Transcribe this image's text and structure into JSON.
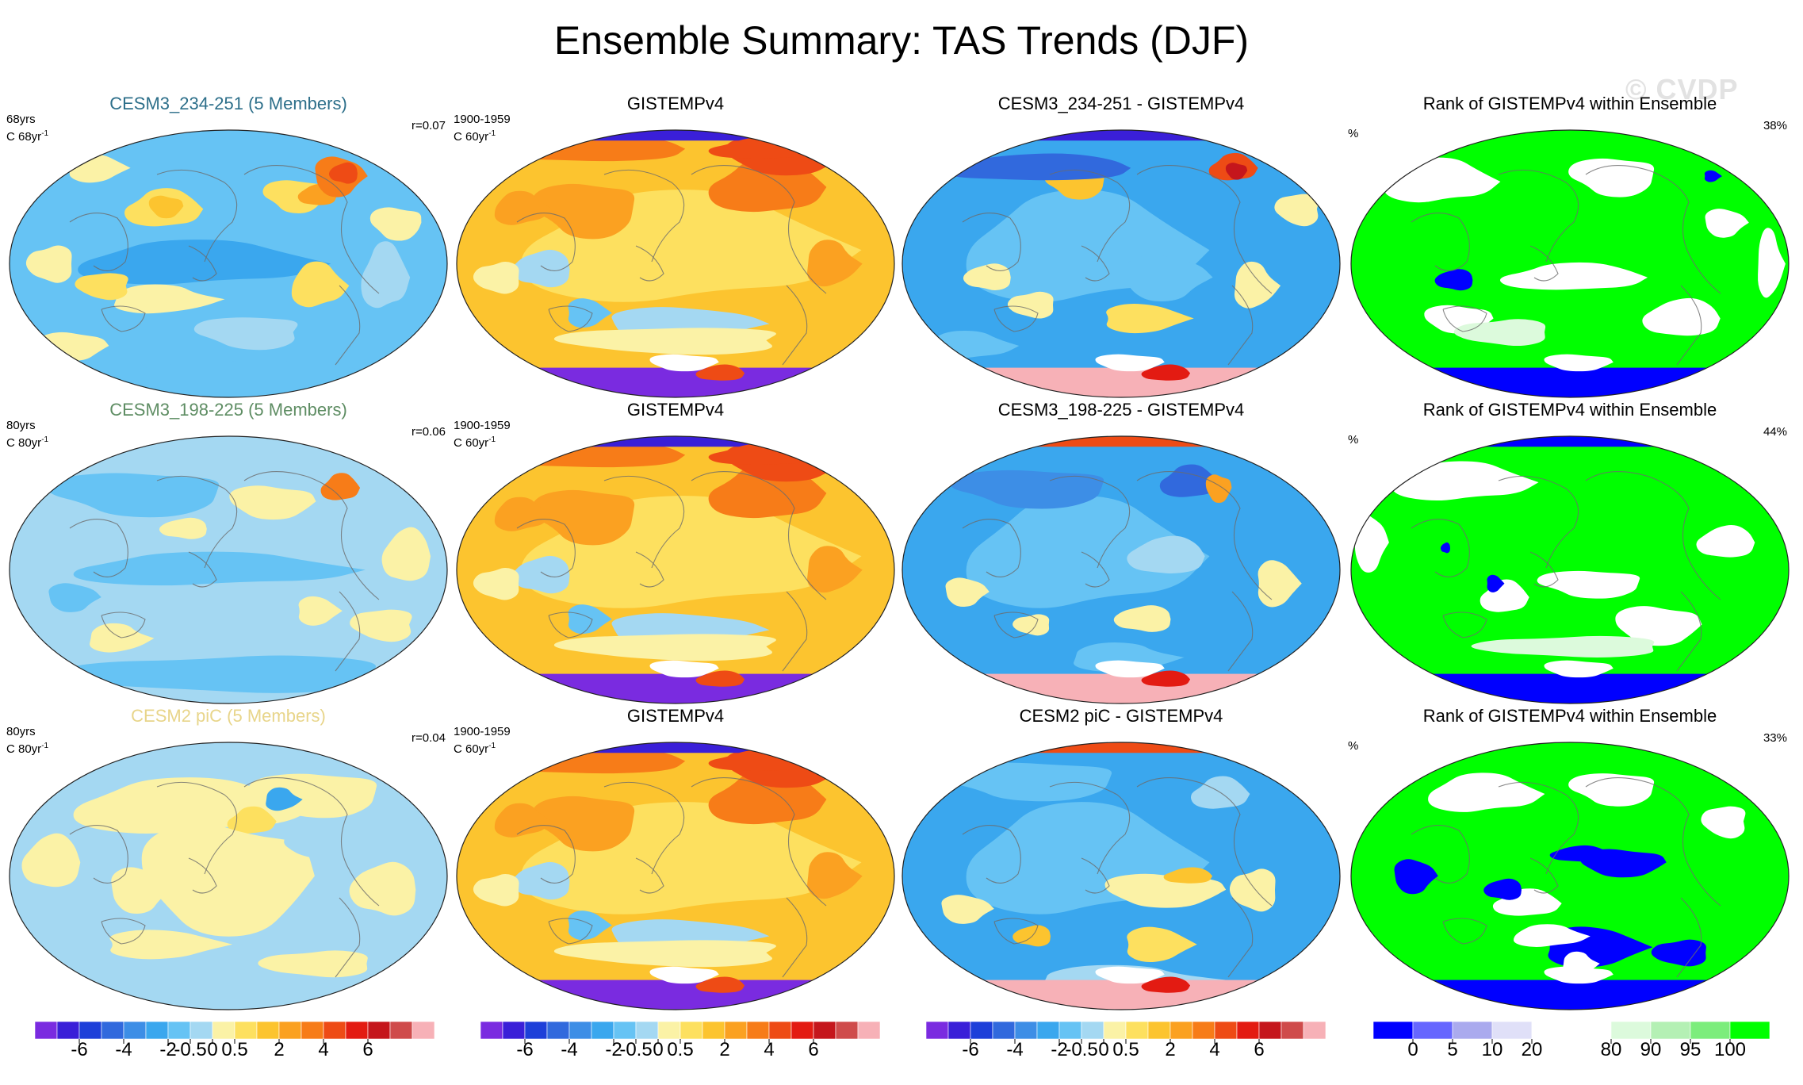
{
  "title": "Ensemble Summary: TAS Trends (DJF)",
  "watermark": "© CVDP",
  "rows": [
    {
      "model": {
        "title": "CESM3_234-251 (5 Members)",
        "title_color": "#2d6f8a",
        "years": "68yrs",
        "units": "C 68yr",
        "sup": "-1",
        "corr": "r=0.07",
        "pattern": "m1"
      },
      "obs": {
        "title": "GISTEMPv4",
        "years": "1900-1959",
        "units": "C 60yr",
        "sup": "-1",
        "pattern": "obs"
      },
      "diff": {
        "title": "CESM3_234-251 - GISTEMPv4",
        "pattern": "d1"
      },
      "rank": {
        "title": "Rank of GISTEMPv4 within Ensemble",
        "pct_label": "%",
        "pct_value": "38%",
        "pattern": "r1"
      }
    },
    {
      "model": {
        "title": "CESM3_198-225 (5 Members)",
        "title_color": "#5e8d63",
        "years": "80yrs",
        "units": "C 80yr",
        "sup": "-1",
        "corr": "r=0.06",
        "pattern": "m2"
      },
      "obs": {
        "title": "GISTEMPv4",
        "years": "1900-1959",
        "units": "C 60yr",
        "sup": "-1",
        "pattern": "obs"
      },
      "diff": {
        "title": "CESM3_198-225 - GISTEMPv4",
        "pattern": "d2"
      },
      "rank": {
        "title": "Rank of GISTEMPv4 within Ensemble",
        "pct_label": "%",
        "pct_value": "44%",
        "pattern": "r2"
      }
    },
    {
      "model": {
        "title": "CESM2 piC (5 Members)",
        "title_color": "#e8d58a",
        "years": "80yrs",
        "units": "C 80yr",
        "sup": "-1",
        "corr": "r=0.04",
        "pattern": "m3"
      },
      "obs": {
        "title": "GISTEMPv4",
        "years": "1900-1959",
        "units": "C 60yr",
        "sup": "-1",
        "pattern": "obs"
      },
      "diff": {
        "title": "CESM2 piC - GISTEMPv4",
        "pattern": "d3"
      },
      "rank": {
        "title": "Rank of GISTEMPv4 within Ensemble",
        "pct_label": "%",
        "pct_value": "33%",
        "pattern": "r3"
      }
    }
  ],
  "chart_data": {
    "type": "heatmap",
    "projection": "Robinson (global)",
    "trend_colorbar": {
      "colors": [
        "#7a2be0",
        "#3a1fd8",
        "#1d3fd9",
        "#3169dd",
        "#3d8ee6",
        "#3aa7ee",
        "#66c3f4",
        "#a4d8f2",
        "#fbf2a6",
        "#fde05f",
        "#fcc42f",
        "#fba121",
        "#f77c18",
        "#ee4b15",
        "#e31b12",
        "#c5161c",
        "#cf4b4b",
        "#f7b1b7"
      ],
      "tick_labels": [
        "-6",
        "-4",
        "-2",
        "-0.5",
        "0",
        "0.5",
        "2",
        "4",
        "6"
      ],
      "tick_after_box": [
        2,
        4,
        6,
        7,
        8,
        9,
        11,
        13,
        15
      ]
    },
    "rank_colorbar": {
      "colors": [
        "#0000ff",
        "#6666ff",
        "#aaaaee",
        "#e0e0f8",
        "#ffffff",
        "#ffffff",
        "#dcfadc",
        "#b4f0b4",
        "#7ced7c",
        "#00ff00"
      ],
      "tick_labels": [
        "0",
        "5",
        "10",
        "20",
        "80",
        "90",
        "95",
        "100"
      ],
      "tick_after_box": [
        1,
        2,
        3,
        4,
        6,
        7,
        8,
        9
      ]
    }
  }
}
